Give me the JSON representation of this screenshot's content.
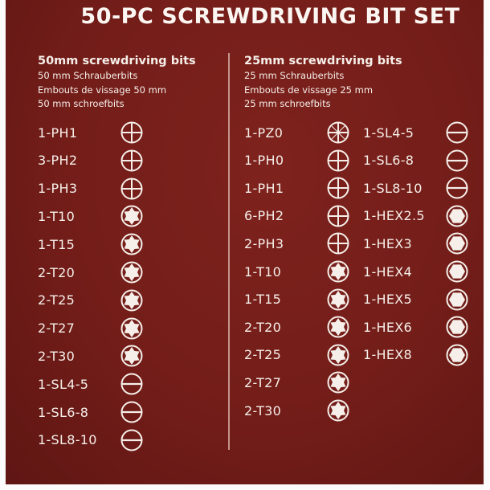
{
  "title": "50-PC SCREWDRIVING BIT SET",
  "colors": {
    "background": "#761f1b",
    "print": "#f6efe9"
  },
  "columns": [
    {
      "heading": "50mm screwdriving bits",
      "subtitles": [
        "50 mm Schrauberbits",
        "Embouts de vissage 50 mm",
        "50 mm schroefbits"
      ],
      "items": [
        {
          "label": "1-PH1",
          "icon": "phillips"
        },
        {
          "label": "3-PH2",
          "icon": "phillips"
        },
        {
          "label": "1-PH3",
          "icon": "phillips"
        },
        {
          "label": "1-T10",
          "icon": "torx"
        },
        {
          "label": "1-T15",
          "icon": "torx"
        },
        {
          "label": "2-T20",
          "icon": "torx"
        },
        {
          "label": "2-T25",
          "icon": "torx"
        },
        {
          "label": "2-T27",
          "icon": "torx"
        },
        {
          "label": "2-T30",
          "icon": "torx"
        },
        {
          "label": "1-SL4-5",
          "icon": "slotted"
        },
        {
          "label": "1-SL6-8",
          "icon": "slotted"
        },
        {
          "label": "1-SL8-10",
          "icon": "slotted"
        }
      ]
    },
    {
      "heading": "25mm screwdriving bits",
      "subtitles": [
        "25 mm Schrauberbits",
        "Embouts de vissage 25 mm",
        "25 mm schroefbits"
      ],
      "items": [
        {
          "label": "1-PZ0",
          "icon": "pozidriv"
        },
        {
          "label": "1-PH0",
          "icon": "phillips"
        },
        {
          "label": "1-PH1",
          "icon": "phillips"
        },
        {
          "label": "6-PH2",
          "icon": "phillips"
        },
        {
          "label": "2-PH3",
          "icon": "phillips"
        },
        {
          "label": "1-T10",
          "icon": "torx"
        },
        {
          "label": "1-T15",
          "icon": "torx"
        },
        {
          "label": "2-T20",
          "icon": "torx"
        },
        {
          "label": "2-T25",
          "icon": "torx"
        },
        {
          "label": "2-T27",
          "icon": "torx"
        },
        {
          "label": "2-T30",
          "icon": "torx"
        }
      ],
      "items_2": [
        {
          "label": "1-SL4-5",
          "icon": "slotted"
        },
        {
          "label": "1-SL6-8",
          "icon": "slotted"
        },
        {
          "label": "1-SL8-10",
          "icon": "slotted"
        },
        {
          "label": "1-HEX2.5",
          "icon": "hex"
        },
        {
          "label": "1-HEX3",
          "icon": "hex"
        },
        {
          "label": "1-HEX4",
          "icon": "hex"
        },
        {
          "label": "1-HEX5",
          "icon": "hex"
        },
        {
          "label": "1-HEX6",
          "icon": "hex"
        },
        {
          "label": "1-HEX8",
          "icon": "hex"
        }
      ]
    }
  ]
}
